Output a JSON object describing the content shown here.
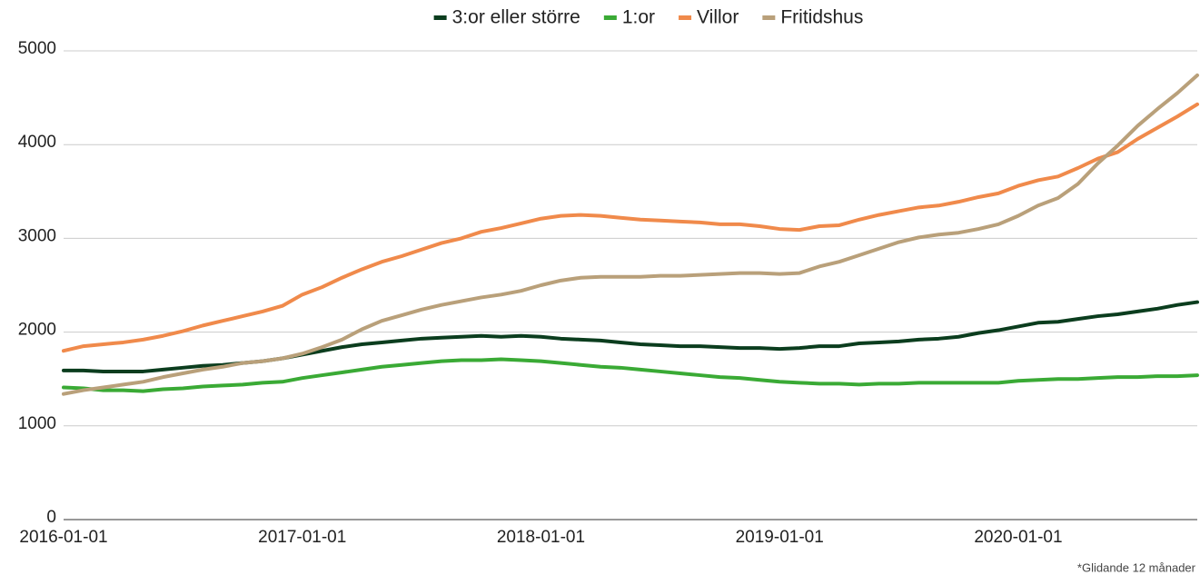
{
  "chart_data": {
    "type": "line",
    "annotation": "*Glidande 12 månader",
    "categories": [
      "2016-01-01",
      null,
      null,
      null,
      null,
      null,
      null,
      null,
      null,
      null,
      null,
      null,
      "2017-01-01",
      null,
      null,
      null,
      null,
      null,
      null,
      null,
      null,
      null,
      null,
      null,
      "2018-01-01",
      null,
      null,
      null,
      null,
      null,
      null,
      null,
      null,
      null,
      null,
      null,
      "2019-01-01",
      null,
      null,
      null,
      null,
      null,
      null,
      null,
      null,
      null,
      null,
      null,
      "2020-01-01",
      null,
      null,
      null,
      null,
      null,
      null,
      null,
      null,
      null
    ],
    "series": [
      {
        "name": "3:or eller större",
        "color": "#0b3d1e",
        "values": [
          1590,
          1590,
          1580,
          1580,
          1580,
          1600,
          1620,
          1640,
          1650,
          1670,
          1690,
          1720,
          1760,
          1800,
          1840,
          1870,
          1890,
          1910,
          1930,
          1940,
          1950,
          1960,
          1950,
          1960,
          1950,
          1930,
          1920,
          1910,
          1890,
          1870,
          1860,
          1850,
          1850,
          1840,
          1830,
          1830,
          1820,
          1830,
          1850,
          1850,
          1880,
          1890,
          1900,
          1920,
          1930,
          1950,
          1990,
          2020,
          2060,
          2100,
          2110,
          2140,
          2170,
          2190,
          2220,
          2250,
          2290,
          2320
        ]
      },
      {
        "name": "1:or",
        "color": "#3aaa35",
        "values": [
          1410,
          1400,
          1380,
          1380,
          1370,
          1390,
          1400,
          1420,
          1430,
          1440,
          1460,
          1470,
          1510,
          1540,
          1570,
          1600,
          1630,
          1650,
          1670,
          1690,
          1700,
          1700,
          1710,
          1700,
          1690,
          1670,
          1650,
          1630,
          1620,
          1600,
          1580,
          1560,
          1540,
          1520,
          1510,
          1490,
          1470,
          1460,
          1450,
          1450,
          1440,
          1450,
          1450,
          1460,
          1460,
          1460,
          1460,
          1460,
          1480,
          1490,
          1500,
          1500,
          1510,
          1520,
          1520,
          1530,
          1530,
          1540
        ]
      },
      {
        "name": "Villor",
        "color": "#f08a4b",
        "values": [
          1800,
          1850,
          1870,
          1890,
          1920,
          1960,
          2010,
          2070,
          2120,
          2170,
          2220,
          2280,
          2400,
          2480,
          2580,
          2670,
          2750,
          2810,
          2880,
          2950,
          3000,
          3070,
          3110,
          3160,
          3210,
          3240,
          3250,
          3240,
          3220,
          3200,
          3190,
          3180,
          3170,
          3150,
          3150,
          3130,
          3100,
          3090,
          3130,
          3140,
          3200,
          3250,
          3290,
          3330,
          3350,
          3390,
          3440,
          3480,
          3560,
          3620,
          3660,
          3750,
          3850,
          3920,
          4060,
          4180,
          4300,
          4430
        ]
      },
      {
        "name": "Fritidshus",
        "color": "#b9a07a",
        "values": [
          1340,
          1380,
          1410,
          1440,
          1470,
          1520,
          1560,
          1600,
          1630,
          1670,
          1690,
          1720,
          1770,
          1840,
          1920,
          2030,
          2120,
          2180,
          2240,
          2290,
          2330,
          2370,
          2400,
          2440,
          2500,
          2550,
          2580,
          2590,
          2590,
          2590,
          2600,
          2600,
          2610,
          2620,
          2630,
          2630,
          2620,
          2630,
          2700,
          2750,
          2820,
          2890,
          2960,
          3010,
          3040,
          3060,
          3100,
          3150,
          3240,
          3350,
          3430,
          3580,
          3800,
          3990,
          4200,
          4380,
          4550,
          4740
        ]
      }
    ],
    "ylim": [
      0,
      5000
    ],
    "yticks": [
      0,
      1000,
      2000,
      3000,
      4000,
      5000
    ],
    "grid": true,
    "legend": "top"
  }
}
